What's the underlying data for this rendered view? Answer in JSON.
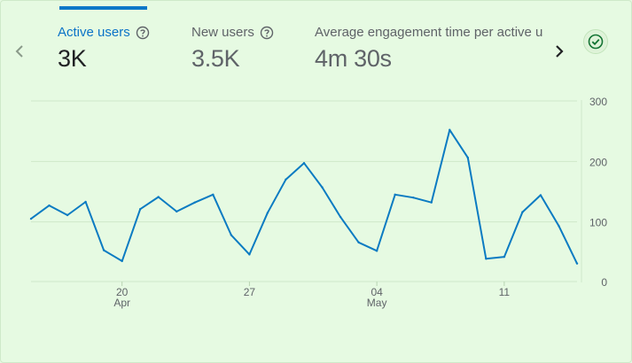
{
  "metrics": [
    {
      "label": "Active users",
      "value": "3K"
    },
    {
      "label": "New users",
      "value": "3.5K"
    },
    {
      "label": "Average engagement time per active us",
      "value": "4m 30s"
    }
  ],
  "colors": {
    "line": "#0b7bc2",
    "grid": "#cfe8c9",
    "accent": "#1a73e8"
  },
  "chart_data": {
    "type": "line",
    "title": "",
    "xlabel": "",
    "ylabel": "",
    "ylim": [
      0,
      300
    ],
    "y_ticks": [
      "0",
      "100",
      "200",
      "300"
    ],
    "x_ticks": [
      {
        "index": 5,
        "label": "20",
        "sub": "Apr"
      },
      {
        "index": 12,
        "label": "27",
        "sub": ""
      },
      {
        "index": 19,
        "label": "04",
        "sub": "May"
      },
      {
        "index": 26,
        "label": "11",
        "sub": ""
      }
    ],
    "series": [
      {
        "name": "Active users",
        "values": [
          114,
          136,
          120,
          142,
          62,
          44,
          130,
          150,
          126,
          141,
          154,
          87,
          55,
          124,
          179,
          206,
          166,
          117,
          75,
          61,
          154,
          149,
          141,
          261,
          215,
          48,
          51,
          125,
          153,
          102,
          40
        ]
      }
    ]
  }
}
